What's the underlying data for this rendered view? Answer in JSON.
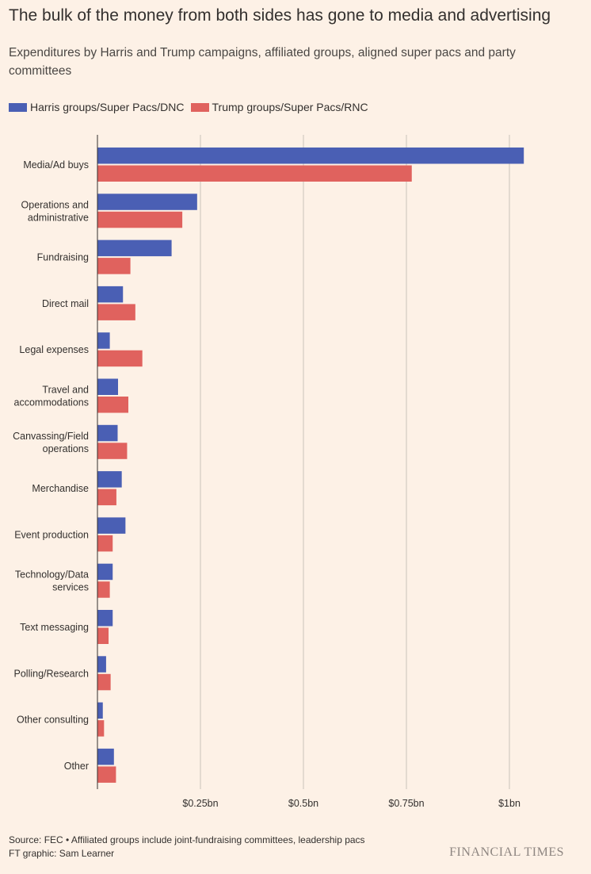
{
  "title": "The bulk of the money from both sides has gone to media and advertising",
  "subtitle": "Expenditures by Harris and Trump campaigns, affiliated groups, aligned super pacs and party committees",
  "colors": {
    "harris": "#4a5fb4",
    "trump": "#e0625e",
    "grid": "#c9c2bb",
    "axis": "#33302e"
  },
  "chart_data": {
    "type": "bar",
    "orientation": "horizontal",
    "categories": [
      [
        "Media/Ad buys"
      ],
      [
        "Operations and",
        "administrative"
      ],
      [
        "Fundraising"
      ],
      [
        "Direct mail"
      ],
      [
        "Legal expenses"
      ],
      [
        "Travel and",
        "accommodations"
      ],
      [
        "Canvassing/Field",
        "operations"
      ],
      [
        "Merchandise"
      ],
      [
        "Event production"
      ],
      [
        "Technology/Data",
        "services"
      ],
      [
        "Text messaging"
      ],
      [
        "Polling/Research"
      ],
      [
        "Other consulting"
      ],
      [
        "Other"
      ]
    ],
    "series": [
      {
        "name": "Harris groups/Super Pacs/DNC",
        "values": [
          1.035,
          0.242,
          0.18,
          0.062,
          0.03,
          0.05,
          0.049,
          0.059,
          0.068,
          0.037,
          0.037,
          0.021,
          0.013,
          0.04
        ]
      },
      {
        "name": "Trump groups/Super Pacs/RNC",
        "values": [
          0.763,
          0.206,
          0.08,
          0.092,
          0.109,
          0.075,
          0.072,
          0.046,
          0.037,
          0.03,
          0.027,
          0.032,
          0.016,
          0.045
        ]
      }
    ],
    "xlim": [
      0,
      1.05
    ],
    "xticks": [
      0.25,
      0.5,
      0.75,
      1.0
    ],
    "xtick_labels": [
      "$0.25bn",
      "$0.5bn",
      "$0.75bn",
      "$1bn"
    ],
    "unit": "bn USD",
    "grid": true,
    "legend_position": "top-left"
  },
  "footer": {
    "source": "Source: FEC • Affiliated groups include joint-fundraising committees, leadership pacs",
    "credit": "FT graphic: Sam Learner"
  },
  "brand": "FINANCIAL TIMES"
}
